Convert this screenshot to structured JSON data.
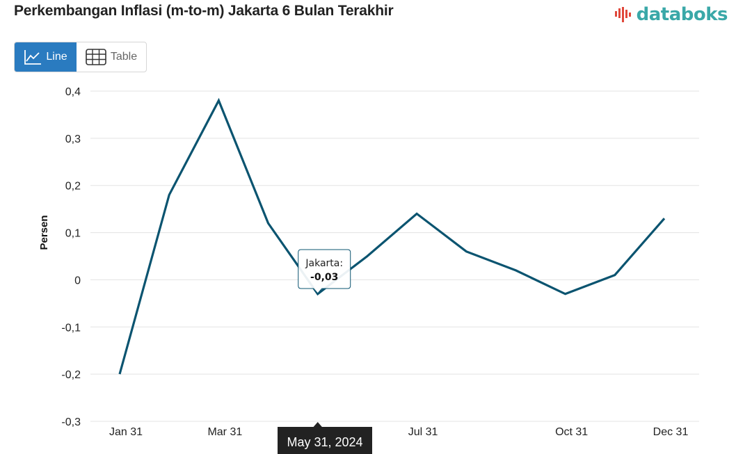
{
  "header": {
    "title": "Perkembangan Inflasi (m-to-m) Jakarta 6 Bulan Terakhir",
    "logo_text": "databoks"
  },
  "toggle": {
    "line_label": "Line",
    "table_label": "Table"
  },
  "tooltip": {
    "series_label": "Jakarta:",
    "value": "-0,03",
    "x_label": "May 31, 2024"
  },
  "colors": {
    "line": "#0b5470",
    "grid": "#e3e3e3",
    "accent": "#2a7bc0",
    "logo": "#3aa8a8",
    "logo_mark": "#e0483b"
  },
  "chart_data": {
    "type": "line",
    "ylabel": "Persen",
    "xlabel": "",
    "ylim": [
      -0.3,
      0.4
    ],
    "yticks": [
      -0.3,
      -0.2,
      -0.1,
      0,
      0.1,
      0.2,
      0.3,
      0.4
    ],
    "ytick_labels": [
      "-0,3",
      "-0,2",
      "-0,1",
      "0",
      "0,1",
      "0,2",
      "0,3",
      "0,4"
    ],
    "xtick_labels": [
      "Jan 31",
      "Mar 31",
      "Jul 31",
      "Oct 31",
      "Dec 31"
    ],
    "x": [
      "2024-01-31",
      "2024-02-29",
      "2024-03-31",
      "2024-04-30",
      "2024-05-31",
      "2024-06-30",
      "2024-07-31",
      "2024-08-31",
      "2024-09-30",
      "2024-10-31",
      "2024-11-30",
      "2024-12-31"
    ],
    "series": [
      {
        "name": "Jakarta",
        "values": [
          -0.2,
          0.18,
          0.38,
          0.12,
          -0.03,
          0.05,
          0.14,
          0.06,
          0.02,
          -0.03,
          0.01,
          0.13
        ]
      }
    ],
    "grid": true
  }
}
